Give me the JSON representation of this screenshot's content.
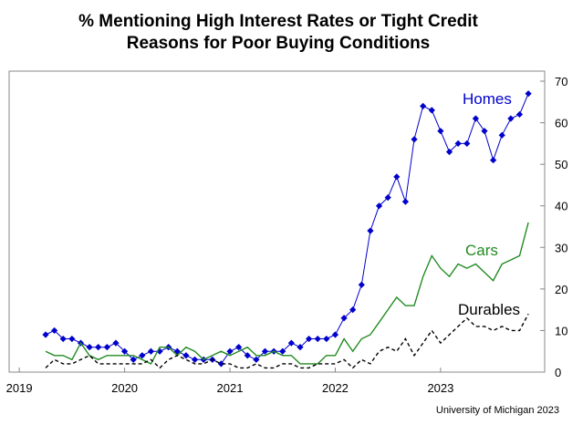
{
  "chart_data": {
    "type": "line",
    "title": "% Mentioning High Interest Rates or Tight Credit",
    "subtitle": "Reasons for Poor Buying Conditions",
    "source": "University of Michigan 2023",
    "x_start": "2019-04",
    "x_end": "2023-11",
    "x_ticks": [
      "2019",
      "2020",
      "2021",
      "2022",
      "2023"
    ],
    "y_ticks": [
      "0",
      "10",
      "20",
      "30",
      "40",
      "50",
      "60",
      "70"
    ],
    "ylim": [
      0,
      70
    ],
    "y_axis_side": "right",
    "grid": false,
    "series": [
      {
        "name": "Homes",
        "color": "#0000cc",
        "style": "solid-diamonds",
        "values": [
          9,
          10,
          8,
          8,
          7,
          6,
          6,
          6,
          7,
          5,
          3,
          4,
          5,
          5,
          6,
          5,
          4,
          3,
          3,
          3,
          2,
          5,
          6,
          4,
          3,
          5,
          5,
          5,
          7,
          6,
          8,
          8,
          8,
          9,
          13,
          15,
          21,
          34,
          40,
          42,
          47,
          41,
          56,
          64,
          63,
          58,
          53,
          55,
          55,
          61,
          58,
          51,
          57,
          61,
          62,
          67
        ]
      },
      {
        "name": "Cars",
        "color": "#228b22",
        "style": "solid",
        "values": [
          5,
          4,
          4,
          3,
          7,
          4,
          3,
          4,
          4,
          4,
          4,
          3,
          2,
          6,
          6,
          4,
          6,
          5,
          3,
          4,
          5,
          4,
          5,
          6,
          4,
          4,
          5,
          4,
          4,
          2,
          2,
          2,
          4,
          4,
          8,
          5,
          8,
          9,
          12,
          15,
          18,
          16,
          16,
          23,
          28,
          25,
          23,
          26,
          25,
          26,
          24,
          22,
          26,
          27,
          28,
          36
        ]
      },
      {
        "name": "Durables",
        "color": "#000000",
        "style": "dashed",
        "values": [
          1,
          3,
          2,
          2,
          3,
          4,
          2,
          2,
          2,
          2,
          2,
          2,
          3,
          1,
          3,
          4,
          3,
          2,
          2,
          3,
          2,
          2,
          1,
          1,
          2,
          1,
          1,
          2,
          2,
          1,
          1,
          2,
          2,
          2,
          3,
          1,
          3,
          2,
          5,
          6,
          5,
          8,
          4,
          7,
          10,
          7,
          9,
          11,
          13,
          11,
          11,
          10,
          11,
          10,
          10,
          14
        ]
      }
    ]
  }
}
